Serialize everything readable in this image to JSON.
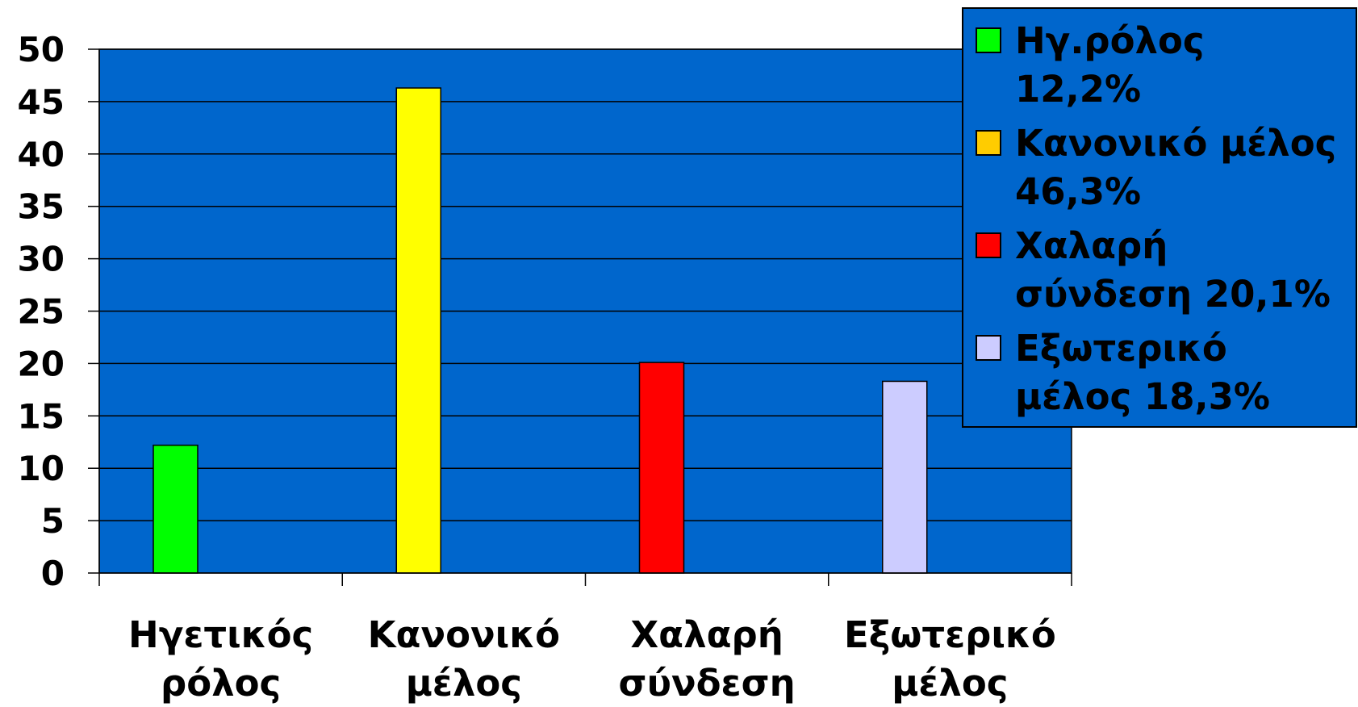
{
  "chart_data": {
    "type": "bar",
    "categories": [
      [
        "Ηγετικός",
        "ρόλος"
      ],
      [
        "Κανονικό",
        "μέλος"
      ],
      [
        "Χαλαρή",
        "σύνδεση"
      ],
      [
        "Εξωτερικό",
        "μέλος"
      ]
    ],
    "values": [
      12.2,
      46.3,
      20.1,
      18.3
    ],
    "bar_colors": [
      "#00FF00",
      "#FFFF00",
      "#FF0000",
      "#CCCCFF"
    ],
    "ylim": [
      0,
      50
    ],
    "yticks": [
      "0",
      "5",
      "10",
      "15",
      "20",
      "25",
      "30",
      "35",
      "40",
      "45",
      "50"
    ],
    "grid": true,
    "plot_background": "#0066CC",
    "legend": {
      "placement": "top-right",
      "background": "#0066CC",
      "entries": [
        {
          "lines": [
            "Ηγ.ρόλος",
            "12,2%"
          ],
          "color": "#00FF00"
        },
        {
          "lines": [
            "Κανονικό μέλος",
            "46,3%"
          ],
          "color": "#FFCC00"
        },
        {
          "lines": [
            "Χαλαρή",
            "σύνδεση 20,1%"
          ],
          "color": "#FF0000"
        },
        {
          "lines": [
            "Εξωτερικό",
            "μέλος 18,3%"
          ],
          "color": "#CCCCFF"
        }
      ]
    }
  }
}
